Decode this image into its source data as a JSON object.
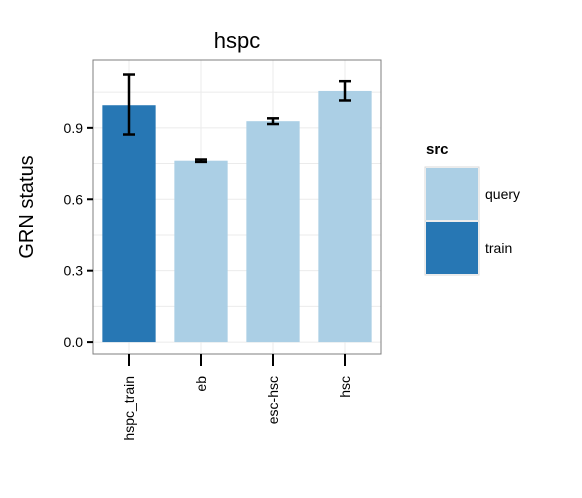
{
  "chart_data": {
    "type": "bar",
    "title": "hspc",
    "xlabel": "",
    "ylabel": "GRN status",
    "categories": [
      "hspc_train",
      "eb",
      "esc-hsc",
      "hsc"
    ],
    "values": [
      0.995,
      0.762,
      0.928,
      1.055
    ],
    "error_low": [
      0.872,
      0.757,
      0.916,
      1.015
    ],
    "error_high": [
      1.124,
      0.767,
      0.94,
      1.096
    ],
    "src": [
      "train",
      "query",
      "query",
      "query"
    ],
    "yticks": [
      0.0,
      0.3,
      0.6,
      0.9
    ],
    "yticklabels": [
      "0.0",
      "0.3",
      "0.6",
      "0.9"
    ],
    "ylim": [
      -0.05,
      1.185
    ],
    "grid": true,
    "legend": {
      "title": "src",
      "position": "right",
      "entries": [
        {
          "label": "query",
          "color": "#abcfe5"
        },
        {
          "label": "train",
          "color": "#2777b4"
        }
      ]
    },
    "colors": {
      "train": "#2777b4",
      "query": "#abcfe5"
    }
  }
}
